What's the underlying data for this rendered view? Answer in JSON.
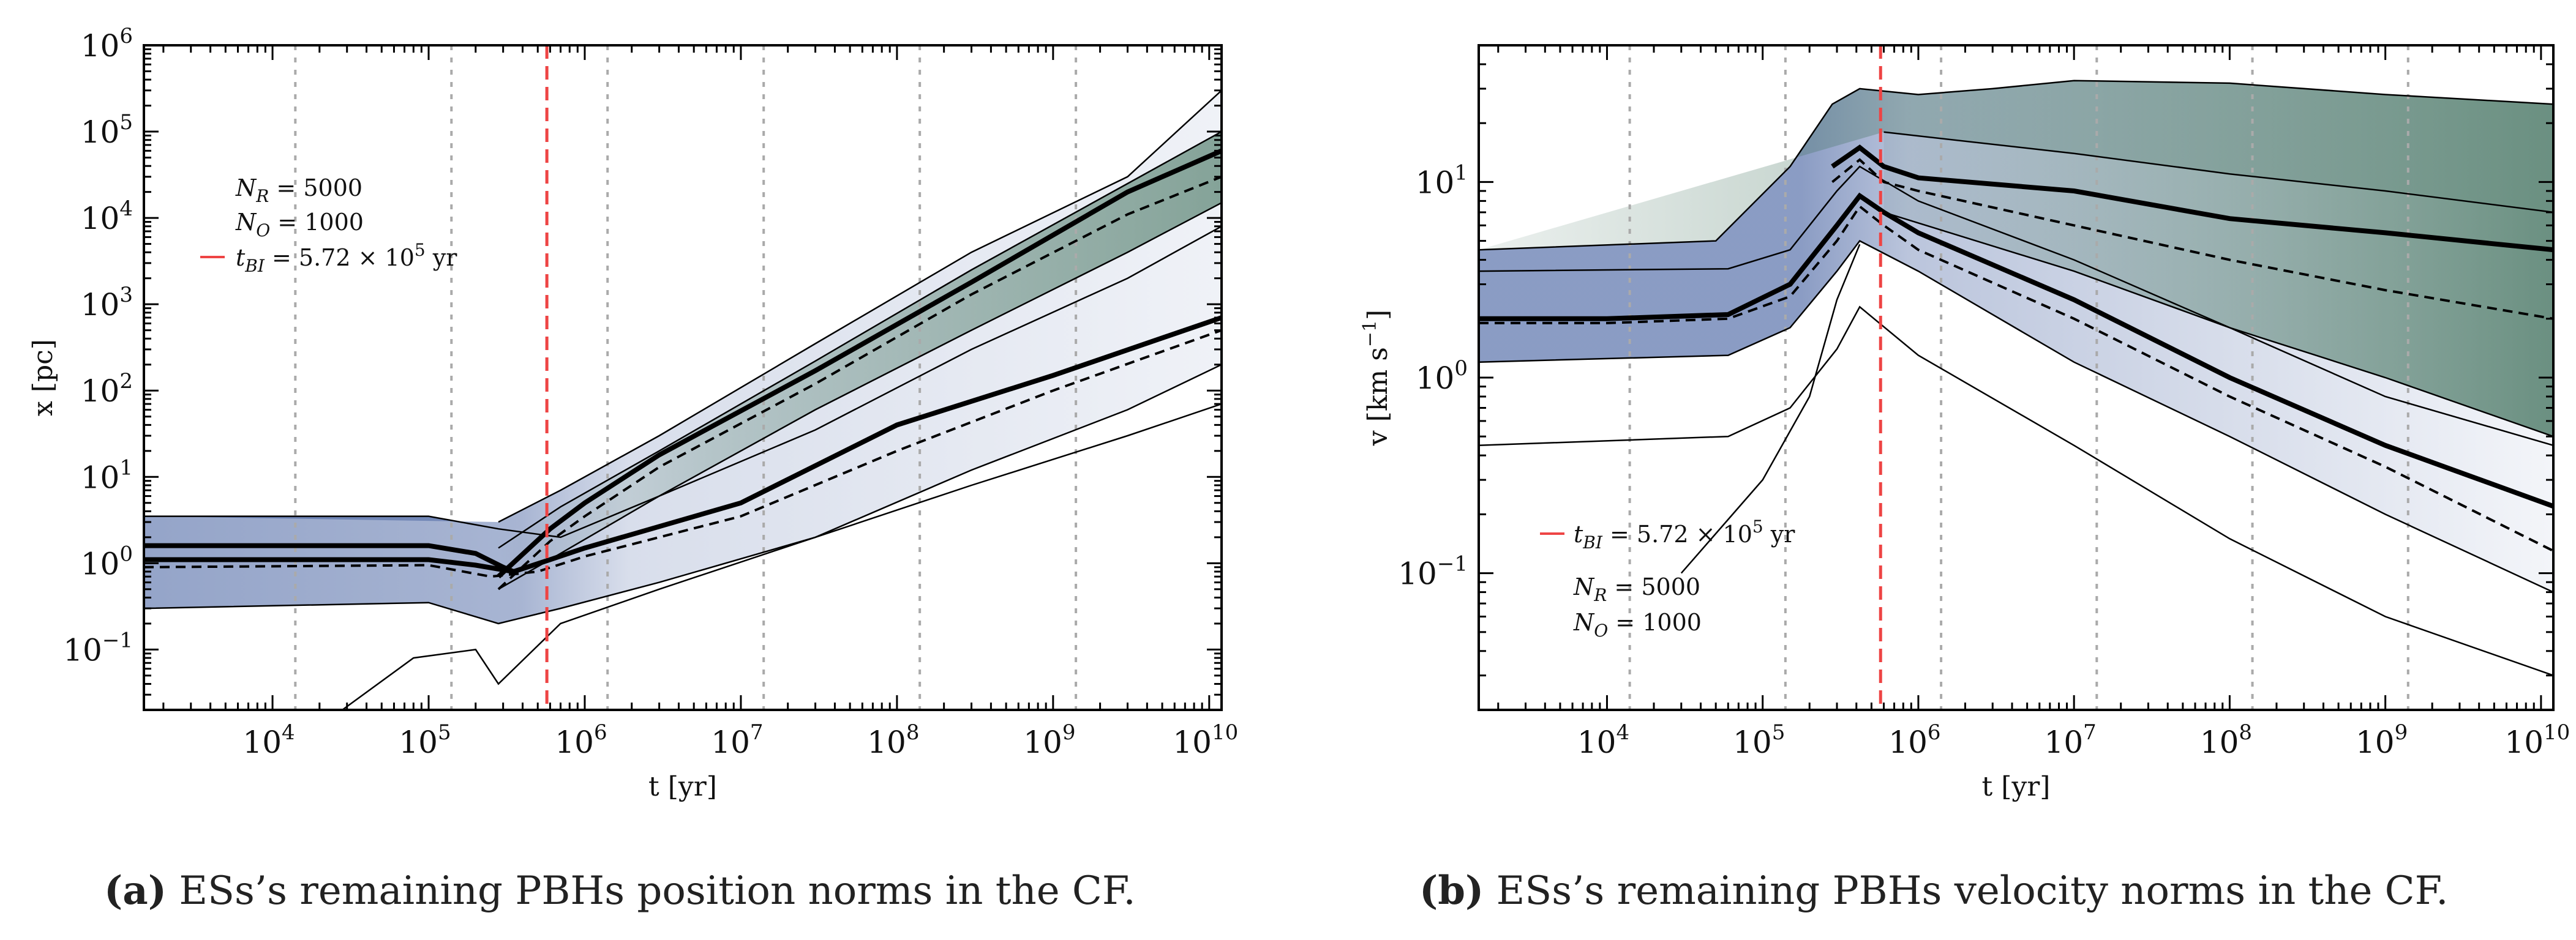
{
  "colors": {
    "blue_band": "#3d5a9c",
    "green_band": "#3d6e59",
    "median": "#000000",
    "thin_line": "#000000",
    "t_bi_line": "#ee4444",
    "grid": "#aaaaaa"
  },
  "chart_data": [
    {
      "id": "a",
      "type": "line",
      "xscale": "log",
      "yscale": "log",
      "xlim": [
        1500,
        12000000000
      ],
      "ylim": [
        0.02,
        1000000
      ],
      "xlabel": "t [yr]",
      "ylabel": "x [pc]",
      "x_ticks": [
        {
          "value": 10000,
          "base": "10",
          "exp": "4"
        },
        {
          "value": 100000,
          "base": "10",
          "exp": "5"
        },
        {
          "value": 1000000,
          "base": "10",
          "exp": "6"
        },
        {
          "value": 10000000,
          "base": "10",
          "exp": "7"
        },
        {
          "value": 100000000,
          "base": "10",
          "exp": "8"
        },
        {
          "value": 1000000000,
          "base": "10",
          "exp": "9"
        },
        {
          "value": 10000000000,
          "base": "10",
          "exp": "10"
        }
      ],
      "y_ticks": [
        {
          "value": 0.1,
          "base": "10",
          "exp": "−1"
        },
        {
          "value": 1,
          "base": "10",
          "exp": "0"
        },
        {
          "value": 10,
          "base": "10",
          "exp": "1"
        },
        {
          "value": 100,
          "base": "10",
          "exp": "2"
        },
        {
          "value": 1000,
          "base": "10",
          "exp": "3"
        },
        {
          "value": 10000,
          "base": "10",
          "exp": "4"
        },
        {
          "value": 100000,
          "base": "10",
          "exp": "5"
        },
        {
          "value": 1000000,
          "base": "10",
          "exp": "6"
        }
      ],
      "grid_lines_x": [
        14000,
        140000,
        1400000,
        14000000,
        140000000,
        1400000000
      ],
      "t_bi": 572000,
      "legend": {
        "nr": "N_R = 5000",
        "no": "N_O = 1000",
        "tbi": "t_BI = 5.72 × 10^5 yr",
        "nr_var": "N",
        "nr_sub": "R",
        "nr_val": "= 5000",
        "no_var": "N",
        "no_sub": "O",
        "no_val": "= 1000",
        "tbi_var": "t",
        "tbi_sub": "BI",
        "tbi_val": "= 5.72 × 10",
        "tbi_exp": "5",
        "tbi_unit": "yr",
        "position": "upper-left"
      },
      "series": [
        {
          "name": "green median",
          "style": "thick",
          "x": [
            280000,
            600000,
            1000000,
            3000000,
            30000000,
            300000000,
            3000000000,
            12000000000
          ],
          "y": [
            0.7,
            2.5,
            5,
            18,
            170,
            1800,
            20000,
            60000
          ]
        },
        {
          "name": "green dashed",
          "style": "dashed",
          "x": [
            280000,
            600000,
            1000000,
            3000000,
            30000000,
            300000000,
            3000000000,
            12000000000
          ],
          "y": [
            0.5,
            1.8,
            3.5,
            13,
            120,
            1300,
            11000,
            30000
          ]
        },
        {
          "name": "blue median",
          "style": "thick",
          "x": [
            1500,
            10000,
            100000,
            200000,
            350000,
            600000,
            1000000,
            10000000,
            100000000,
            1000000000,
            12000000000
          ],
          "y": [
            1.1,
            1.1,
            1.1,
            0.95,
            0.8,
            1.1,
            1.5,
            5,
            40,
            150,
            700
          ]
        },
        {
          "name": "blue upper",
          "style": "thick",
          "x": [
            1500,
            10000,
            100000,
            200000,
            300000,
            350000
          ],
          "y": [
            1.6,
            1.6,
            1.6,
            1.3,
            0.9,
            0.8
          ]
        },
        {
          "name": "blue dashed",
          "style": "dashed",
          "x": [
            1500,
            100000,
            250000,
            500000,
            1000000,
            10000000,
            100000000,
            1000000000,
            12000000000
          ],
          "y": [
            0.9,
            0.95,
            0.7,
            0.8,
            1.2,
            3.5,
            20,
            100,
            500
          ]
        },
        {
          "name": "upper envelope",
          "style": "thin",
          "x": [
            280000,
            700000,
            3000000,
            30000000,
            300000000,
            3000000000,
            12000000000
          ],
          "y": [
            3,
            7,
            30,
            350,
            4000,
            30000,
            300000
          ]
        },
        {
          "name": "green q75",
          "style": "thin",
          "x": [
            280000,
            700000,
            3000000,
            30000000,
            300000000,
            3000000000,
            12000000000
          ],
          "y": [
            1.5,
            4.5,
            20,
            220,
            2500,
            25000,
            100000
          ]
        },
        {
          "name": "green q25",
          "style": "thin",
          "x": [
            280000,
            700000,
            3000000,
            30000000,
            300000000,
            3000000000,
            12000000000
          ],
          "y": [
            0.5,
            1.3,
            6,
            60,
            500,
            4000,
            15000
          ]
        },
        {
          "name": "blue q75",
          "style": "thin",
          "x": [
            1500,
            100000,
            280000,
            700000,
            3000000,
            30000000,
            300000000,
            3000000000,
            12000000000
          ],
          "y": [
            3.5,
            3.5,
            2.5,
            2,
            6,
            35,
            300,
            2000,
            8000
          ]
        },
        {
          "name": "blue q25",
          "style": "thin",
          "x": [
            1500,
            100000,
            280000,
            700000,
            3000000,
            30000000,
            300000000,
            3000000000,
            12000000000
          ],
          "y": [
            0.3,
            0.35,
            0.2,
            0.3,
            0.6,
            2,
            12,
            60,
            200
          ]
        },
        {
          "name": "lower envelope",
          "style": "thin",
          "x": [
            28000,
            80000,
            200000,
            280000,
            700000,
            3000000,
            30000000,
            300000000,
            3000000000,
            12000000000
          ],
          "y": [
            0.02,
            0.08,
            0.1,
            0.04,
            0.2,
            0.5,
            2,
            8,
            30,
            70
          ]
        }
      ]
    },
    {
      "id": "b",
      "type": "line",
      "xscale": "log",
      "yscale": "log",
      "xlim": [
        1500,
        12000000000
      ],
      "ylim": [
        0.02,
        50
      ],
      "xlabel": "t [yr]",
      "ylabel": "v [km s^-1]",
      "ylabel_parts": {
        "main": "v [km s",
        "exp": "−1",
        "close": "]"
      },
      "x_ticks": [
        {
          "value": 10000,
          "base": "10",
          "exp": "4"
        },
        {
          "value": 100000,
          "base": "10",
          "exp": "5"
        },
        {
          "value": 1000000,
          "base": "10",
          "exp": "6"
        },
        {
          "value": 10000000,
          "base": "10",
          "exp": "7"
        },
        {
          "value": 100000000,
          "base": "10",
          "exp": "8"
        },
        {
          "value": 1000000000,
          "base": "10",
          "exp": "9"
        },
        {
          "value": 10000000000,
          "base": "10",
          "exp": "10"
        }
      ],
      "y_ticks": [
        {
          "value": 0.1,
          "base": "10",
          "exp": "−1"
        },
        {
          "value": 1,
          "base": "10",
          "exp": "0"
        },
        {
          "value": 10,
          "base": "10",
          "exp": "1"
        }
      ],
      "grid_lines_x": [
        14000,
        140000,
        1400000,
        14000000,
        140000000,
        1400000000
      ],
      "t_bi": 572000,
      "legend": {
        "tbi": "t_BI = 5.72 × 10^5 yr",
        "nr": "N_R = 5000",
        "no": "N_O = 1000",
        "nr_var": "N",
        "nr_sub": "R",
        "nr_val": "= 5000",
        "no_var": "N",
        "no_sub": "O",
        "no_val": "= 1000",
        "tbi_var": "t",
        "tbi_sub": "BI",
        "tbi_val": "= 5.72 × 10",
        "tbi_exp": "5",
        "tbi_unit": "yr",
        "position": "lower-left"
      },
      "series": [
        {
          "name": "blue median",
          "style": "thick",
          "x": [
            1500,
            10000,
            60000,
            150000,
            300000,
            420000,
            600000,
            1000000,
            10000000,
            100000000,
            1000000000,
            12000000000
          ],
          "y": [
            2,
            2,
            2.1,
            3,
            6,
            8.5,
            7,
            5.5,
            2.5,
            1.0,
            0.45,
            0.22
          ]
        },
        {
          "name": "blue dashed",
          "style": "dashed",
          "x": [
            1500,
            10000,
            60000,
            150000,
            300000,
            420000,
            600000,
            1000000,
            10000000,
            100000000,
            1000000000,
            12000000000
          ],
          "y": [
            1.9,
            1.9,
            2,
            2.6,
            5,
            7.5,
            6,
            4.5,
            2,
            0.8,
            0.35,
            0.13
          ]
        },
        {
          "name": "green median",
          "style": "thick",
          "x": [
            280000,
            420000,
            600000,
            1000000,
            10000000,
            100000000,
            1000000000,
            12000000000
          ],
          "y": [
            12,
            15,
            12,
            10.5,
            9,
            6.5,
            5.5,
            4.5
          ]
        },
        {
          "name": "green dashed",
          "style": "dashed",
          "x": [
            280000,
            420000,
            600000,
            1000000,
            10000000,
            100000000,
            1000000000,
            12000000000
          ],
          "y": [
            10,
            13,
            10,
            9,
            6,
            4,
            2.8,
            2
          ]
        },
        {
          "name": "upper envelope",
          "style": "thin",
          "x": [
            1500,
            50000,
            150000,
            280000,
            420000,
            1000000,
            3000000,
            10000000,
            100000000,
            1000000000,
            12000000000
          ],
          "y": [
            4.5,
            5,
            12,
            25,
            30,
            28,
            30,
            33,
            32,
            28,
            25
          ]
        },
        {
          "name": "blue q75",
          "style": "thin",
          "x": [
            1500,
            60000,
            150000,
            300000,
            420000,
            1000000,
            10000000,
            100000000,
            1000000000,
            12000000000
          ],
          "y": [
            3.5,
            3.6,
            4.5,
            9,
            12,
            8,
            4,
            1.8,
            0.8,
            0.45
          ]
        },
        {
          "name": "blue q25",
          "style": "thin",
          "x": [
            1500,
            60000,
            150000,
            300000,
            420000,
            1000000,
            10000000,
            100000000,
            1000000000,
            12000000000
          ],
          "y": [
            1.2,
            1.3,
            1.8,
            3.5,
            5,
            3.5,
            1.2,
            0.5,
            0.2,
            0.08
          ]
        },
        {
          "name": "lower envelope",
          "style": "thin",
          "x": [
            1500,
            60000,
            150000,
            300000,
            420000,
            1000000,
            10000000,
            100000000,
            1000000000,
            12000000000
          ],
          "y": [
            0.45,
            0.5,
            0.7,
            1.4,
            2.3,
            1.3,
            0.45,
            0.15,
            0.06,
            0.03
          ]
        },
        {
          "name": "rising tail",
          "style": "thin",
          "x": [
            30000,
            100000,
            200000,
            300000,
            420000
          ],
          "y": [
            0.1,
            0.3,
            0.8,
            2.5,
            4.8
          ]
        },
        {
          "name": "green q75",
          "style": "thin",
          "x": [
            600000,
            10000000,
            100000000,
            1000000000,
            12000000000
          ],
          "y": [
            18,
            14,
            11,
            9,
            7
          ]
        },
        {
          "name": "green q25",
          "style": "thin",
          "x": [
            600000,
            10000000,
            100000000,
            1000000000,
            12000000000
          ],
          "y": [
            7,
            3.5,
            1.8,
            1.0,
            0.5
          ]
        }
      ]
    }
  ],
  "captions": [
    {
      "label": "(a)",
      "text": "ESs’s remaining PBHs position norms in the CF."
    },
    {
      "label": "(b)",
      "text": "ESs’s remaining PBHs velocity norms in the CF."
    }
  ]
}
